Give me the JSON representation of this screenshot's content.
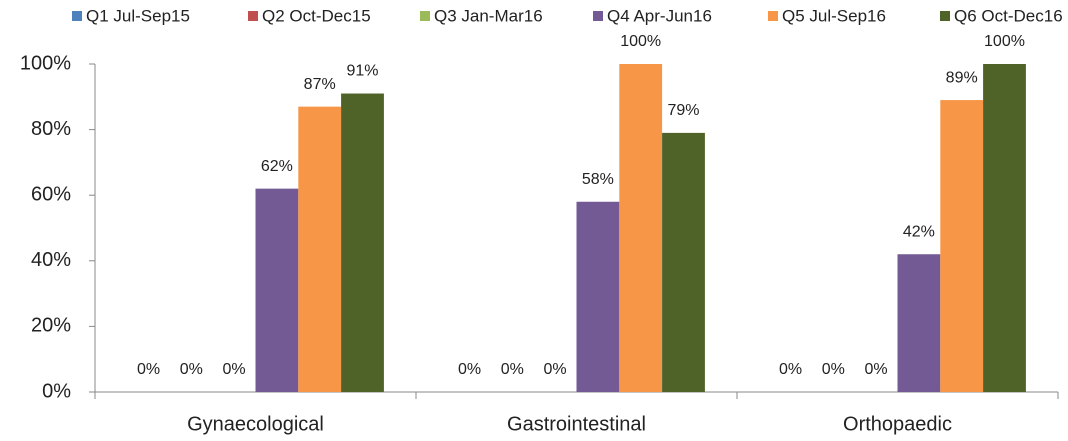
{
  "chart_data": {
    "type": "bar",
    "categories": [
      "Gynaecological",
      "Gastrointestinal",
      "Orthopaedic"
    ],
    "series": [
      {
        "name": "Q1 Jul-Sep15",
        "color": "#4f81bd",
        "values": [
          0,
          0,
          0
        ],
        "value_labels": [
          "0%",
          "0%",
          "0%"
        ]
      },
      {
        "name": "Q2 Oct-Dec15",
        "color": "#c0504d",
        "values": [
          0,
          0,
          0
        ],
        "value_labels": [
          "0%",
          "0%",
          "0%"
        ]
      },
      {
        "name": "Q3 Jan-Mar16",
        "color": "#9bbb59",
        "values": [
          0,
          0,
          0
        ],
        "value_labels": [
          "0%",
          "0%",
          "0%"
        ]
      },
      {
        "name": "Q4 Apr-Jun16",
        "color": "#735a94",
        "values": [
          62,
          58,
          42
        ],
        "value_labels": [
          "62%",
          "58%",
          "42%"
        ]
      },
      {
        "name": "Q5 Jul-Sep16",
        "color": "#f79646",
        "values": [
          87,
          100,
          89
        ],
        "value_labels": [
          "87%",
          "100%",
          "89%"
        ]
      },
      {
        "name": "Q6 Oct-Dec16",
        "color": "#4f6228",
        "values": [
          91,
          79,
          100
        ],
        "value_labels": [
          "91%",
          "79%",
          "100%"
        ]
      }
    ],
    "ylim": [
      0,
      100
    ],
    "yticks": [
      {
        "value": 0,
        "label": "0%"
      },
      {
        "value": 20,
        "label": "20%"
      },
      {
        "value": 40,
        "label": "40%"
      },
      {
        "value": 60,
        "label": "60%"
      },
      {
        "value": 80,
        "label": "80%"
      },
      {
        "value": 100,
        "label": "100%"
      }
    ],
    "legend": "top",
    "grid": false
  }
}
